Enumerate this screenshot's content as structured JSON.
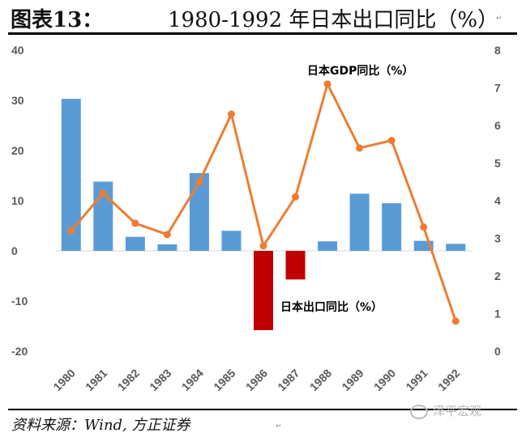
{
  "header": {
    "figure_label": "图表13：",
    "title": "1980-1992 年日本出口同比（%）",
    "mark": "↵"
  },
  "footer": {
    "source": "资料来源：Wind, 方正证券",
    "mark": "↵",
    "watermark": "泽平宏观"
  },
  "colors": {
    "bar_positive": "#5b9bd5",
    "bar_negative": "#c00000",
    "line": "#ed7d31",
    "axis_text": "#595959",
    "axis_line": "#d9d9d9"
  },
  "chart_data": {
    "type": "bar",
    "categories": [
      "1980",
      "1981",
      "1982",
      "1983",
      "1984",
      "1985",
      "1986",
      "1987",
      "1988",
      "1989",
      "1990",
      "1991",
      "1992"
    ],
    "series": [
      {
        "name": "日本出口同比（%）",
        "type": "bar",
        "axis": "left",
        "values": [
          30.3,
          13.8,
          2.8,
          1.3,
          15.5,
          4.0,
          -15.8,
          -5.7,
          1.9,
          11.4,
          9.5,
          2.0,
          1.4
        ]
      },
      {
        "name": "日本GDP同比（%）",
        "type": "line",
        "axis": "right",
        "values": [
          3.2,
          4.2,
          3.4,
          3.1,
          4.5,
          6.3,
          2.8,
          4.1,
          7.1,
          5.4,
          5.6,
          3.3,
          0.8
        ]
      }
    ],
    "y_left": {
      "min": -20,
      "max": 40,
      "ticks": [
        40,
        30,
        20,
        10,
        0,
        -10,
        -20
      ]
    },
    "y_right": {
      "min": 0,
      "max": 8,
      "ticks": [
        8,
        7,
        6,
        5,
        4,
        3,
        2,
        1,
        0
      ]
    },
    "grid": false,
    "legend": "data-labels"
  }
}
